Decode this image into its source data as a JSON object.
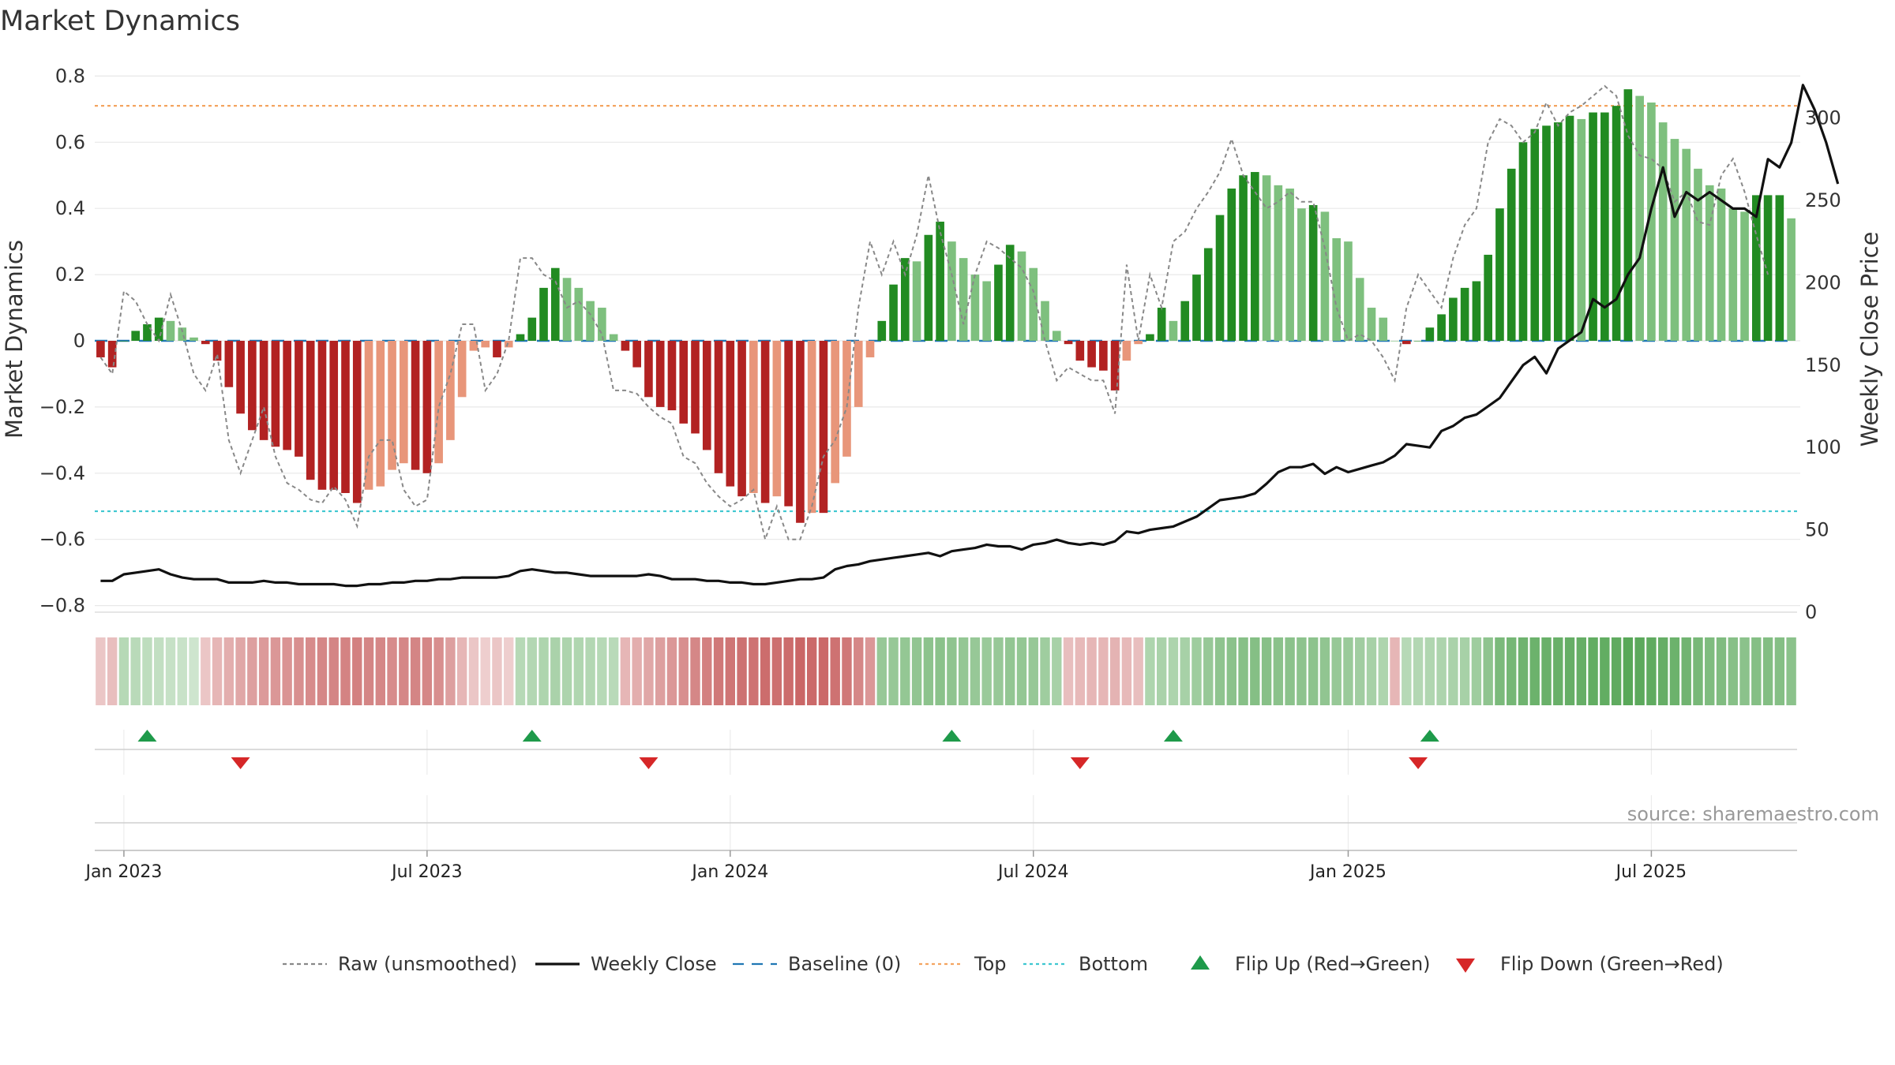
{
  "chart_data": {
    "type": "bar",
    "title": "Market Dynamics",
    "ylabel": "Market Dynamics",
    "y2label": "Weekly Close Price",
    "ylim": [
      -0.82,
      0.82
    ],
    "y2lim": [
      0,
      340
    ],
    "yticks": [
      "0.8",
      "0.6",
      "0.4",
      "0.2",
      "0",
      "−0.2",
      "−0.4",
      "−0.6",
      "−0.8"
    ],
    "y2ticks": [
      "0",
      "50",
      "100",
      "150",
      "200",
      "250",
      "300"
    ],
    "xticks": [
      "Jan 2023",
      "Jul 2023",
      "Jan 2024",
      "Jul 2024",
      "Jan 2025",
      "Jul 2025"
    ],
    "x_start": "2022-12-19",
    "x_end": "2025-09-22",
    "top_level": 0.71,
    "bottom_level": -0.515,
    "baseline": 0,
    "grid": true,
    "legend_position": "bottom",
    "colors": {
      "red_strong": "#b22222",
      "red_light": "#e8967a",
      "green_strong": "#228b22",
      "green_light": "#7ec07e",
      "raw": "#888888",
      "close": "#111111",
      "baseline": "#1f77b4",
      "top": "#f4a460",
      "bottom": "#3ec7d0",
      "flip_up": "#1e9a4a",
      "flip_down": "#d62728"
    },
    "series": [
      {
        "name": "Market Dynamics",
        "type": "bar",
        "values": [
          -0.05,
          -0.08,
          0.0,
          0.03,
          0.05,
          0.07,
          0.06,
          0.04,
          0.01,
          -0.01,
          -0.06,
          -0.14,
          -0.22,
          -0.27,
          -0.3,
          -0.32,
          -0.33,
          -0.35,
          -0.42,
          -0.45,
          -0.45,
          -0.46,
          -0.49,
          -0.45,
          -0.44,
          -0.39,
          -0.37,
          -0.39,
          -0.4,
          -0.37,
          -0.3,
          -0.17,
          -0.03,
          -0.02,
          -0.05,
          -0.02,
          0.02,
          0.07,
          0.16,
          0.22,
          0.19,
          0.16,
          0.12,
          0.1,
          0.02,
          -0.03,
          -0.08,
          -0.17,
          -0.2,
          -0.21,
          -0.25,
          -0.28,
          -0.33,
          -0.4,
          -0.44,
          -0.47,
          -0.46,
          -0.49,
          -0.47,
          -0.5,
          -0.55,
          -0.52,
          -0.52,
          -0.43,
          -0.35,
          -0.2,
          -0.05,
          0.06,
          0.17,
          0.25,
          0.24,
          0.32,
          0.36,
          0.3,
          0.25,
          0.2,
          0.18,
          0.23,
          0.29,
          0.27,
          0.22,
          0.12,
          0.03,
          -0.01,
          -0.06,
          -0.08,
          -0.09,
          -0.15,
          -0.06,
          -0.01,
          0.02,
          0.1,
          0.06,
          0.12,
          0.2,
          0.28,
          0.38,
          0.46,
          0.5,
          0.51,
          0.5,
          0.47,
          0.46,
          0.4,
          0.41,
          0.39,
          0.31,
          0.3,
          0.19,
          0.1,
          0.07,
          0.0,
          -0.01,
          0.0,
          0.04,
          0.08,
          0.13,
          0.16,
          0.18,
          0.26,
          0.4,
          0.52,
          0.6,
          0.64,
          0.65,
          0.66,
          0.68,
          0.67,
          0.69,
          0.69,
          0.71,
          0.76,
          0.74,
          0.72,
          0.66,
          0.61,
          0.58,
          0.52,
          0.47,
          0.46,
          0.4,
          0.39,
          0.44,
          0.44,
          0.44,
          0.37
        ]
      },
      {
        "name": "Raw (unsmoothed)",
        "type": "line",
        "values": [
          -0.05,
          -0.1,
          0.15,
          0.12,
          0.05,
          0.0,
          0.14,
          0.03,
          -0.1,
          -0.15,
          -0.04,
          -0.3,
          -0.4,
          -0.3,
          -0.2,
          -0.35,
          -0.43,
          -0.45,
          -0.48,
          -0.49,
          -0.44,
          -0.48,
          -0.56,
          -0.35,
          -0.3,
          -0.3,
          -0.45,
          -0.5,
          -0.48,
          -0.2,
          -0.1,
          0.05,
          0.05,
          -0.15,
          -0.1,
          0.0,
          0.25,
          0.25,
          0.2,
          0.18,
          0.1,
          0.12,
          0.08,
          0.02,
          -0.15,
          -0.15,
          -0.16,
          -0.2,
          -0.23,
          -0.25,
          -0.35,
          -0.37,
          -0.43,
          -0.47,
          -0.5,
          -0.48,
          -0.45,
          -0.6,
          -0.5,
          -0.6,
          -0.6,
          -0.5,
          -0.35,
          -0.3,
          -0.2,
          0.1,
          0.3,
          0.2,
          0.3,
          0.2,
          0.32,
          0.5,
          0.33,
          0.2,
          0.05,
          0.2,
          0.3,
          0.28,
          0.25,
          0.22,
          0.15,
          0.0,
          -0.12,
          -0.08,
          -0.1,
          -0.12,
          -0.12,
          -0.22,
          0.23,
          0.0,
          0.2,
          0.1,
          0.3,
          0.33,
          0.4,
          0.45,
          0.51,
          0.61,
          0.5,
          0.45,
          0.4,
          0.42,
          0.45,
          0.42,
          0.42,
          0.28,
          0.1,
          0.0,
          0.02,
          0.0,
          -0.05,
          -0.12,
          0.1,
          0.2,
          0.15,
          0.1,
          0.25,
          0.35,
          0.4,
          0.6,
          0.67,
          0.65,
          0.6,
          0.63,
          0.72,
          0.65,
          0.69,
          0.71,
          0.74,
          0.77,
          0.74,
          0.62,
          0.56,
          0.55,
          0.52,
          0.42,
          0.45,
          0.36,
          0.35,
          0.5,
          0.55,
          0.45,
          0.32,
          0.2
        ]
      },
      {
        "name": "Weekly Close",
        "type": "line",
        "axis": "right",
        "values": [
          19,
          19,
          23,
          24,
          25,
          26,
          23,
          21,
          20,
          20,
          20,
          18,
          18,
          18,
          19,
          18,
          18,
          17,
          17,
          17,
          17,
          16,
          16,
          17,
          17,
          18,
          18,
          19,
          19,
          20,
          20,
          21,
          21,
          21,
          21,
          22,
          25,
          26,
          25,
          24,
          24,
          23,
          22,
          22,
          22,
          22,
          22,
          23,
          22,
          20,
          20,
          20,
          19,
          19,
          18,
          18,
          17,
          17,
          18,
          19,
          20,
          20,
          21,
          26,
          28,
          29,
          31,
          32,
          33,
          34,
          35,
          36,
          34,
          37,
          38,
          39,
          41,
          40,
          40,
          38,
          41,
          42,
          44,
          42,
          41,
          42,
          41,
          43,
          49,
          48,
          50,
          51,
          52,
          55,
          58,
          63,
          68,
          69,
          70,
          72,
          78,
          85,
          88,
          88,
          90,
          84,
          88,
          85,
          87,
          89,
          91,
          95,
          102,
          101,
          100,
          110,
          113,
          118,
          120,
          125,
          130,
          140,
          150,
          155,
          145,
          160,
          165,
          170,
          190,
          185,
          190,
          205,
          215,
          245,
          270,
          240,
          255,
          250,
          255,
          250,
          245,
          245,
          240,
          275,
          270,
          285,
          320,
          305,
          285,
          260
        ]
      }
    ]
  },
  "strip": {
    "values": [
      -0.2,
      -0.25,
      0.3,
      0.28,
      0.25,
      0.22,
      0.2,
      0.18,
      0.15,
      -0.2,
      -0.3,
      -0.35,
      -0.4,
      -0.45,
      -0.48,
      -0.5,
      -0.52,
      -0.55,
      -0.58,
      -0.6,
      -0.62,
      -0.63,
      -0.65,
      -0.62,
      -0.6,
      -0.58,
      -0.6,
      -0.62,
      -0.6,
      -0.55,
      -0.45,
      -0.3,
      -0.2,
      -0.15,
      -0.2,
      -0.15,
      0.3,
      0.32,
      0.35,
      0.38,
      0.36,
      0.34,
      0.32,
      0.3,
      0.28,
      -0.3,
      -0.35,
      -0.4,
      -0.45,
      -0.5,
      -0.55,
      -0.6,
      -0.65,
      -0.7,
      -0.72,
      -0.75,
      -0.74,
      -0.77,
      -0.76,
      -0.78,
      -0.82,
      -0.8,
      -0.8,
      -0.74,
      -0.7,
      -0.6,
      -0.5,
      0.5,
      0.5,
      0.52,
      0.54,
      0.56,
      0.58,
      0.55,
      0.52,
      0.5,
      0.48,
      0.5,
      0.53,
      0.52,
      0.5,
      0.45,
      0.4,
      -0.25,
      -0.28,
      -0.3,
      -0.3,
      -0.32,
      -0.28,
      -0.25,
      0.35,
      0.38,
      0.36,
      0.4,
      0.45,
      0.5,
      0.55,
      0.58,
      0.6,
      0.62,
      0.6,
      0.58,
      0.58,
      0.56,
      0.56,
      0.54,
      0.5,
      0.48,
      0.44,
      0.4,
      0.35,
      -0.3,
      0.3,
      0.32,
      0.34,
      0.36,
      0.38,
      0.4,
      0.45,
      0.55,
      0.68,
      0.72,
      0.76,
      0.78,
      0.8,
      0.8,
      0.82,
      0.82,
      0.84,
      0.84,
      0.86,
      0.9,
      0.88,
      0.86,
      0.82,
      0.78,
      0.75,
      0.7,
      0.66,
      0.65,
      0.6,
      0.58,
      0.62,
      0.63,
      0.62,
      0.58
    ]
  },
  "flips": {
    "up": [
      "2023-01-16",
      "2023-09-04",
      "2024-05-13",
      "2024-09-23",
      "2025-02-24"
    ],
    "down": [
      "2023-03-13",
      "2023-11-13",
      "2024-07-29",
      "2025-02-17"
    ]
  },
  "source": "source: sharemaestro.com",
  "legend": [
    {
      "label": "Raw (unsmoothed)",
      "kind": "dashed-line",
      "color": "#888888"
    },
    {
      "label": "Weekly Close",
      "kind": "solid-line",
      "color": "#111111"
    },
    {
      "label": "Baseline (0)",
      "kind": "long-dash-line",
      "color": "#1f77b4"
    },
    {
      "label": "Top",
      "kind": "dotted-line",
      "color": "#f4a460"
    },
    {
      "label": "Bottom",
      "kind": "dotted-line",
      "color": "#3ec7d0"
    },
    {
      "label": "Flip Up (Red→Green)",
      "kind": "triangle-up",
      "color": "#1e9a4a"
    },
    {
      "label": "Flip Down (Green→Red)",
      "kind": "triangle-down",
      "color": "#d62728"
    }
  ]
}
